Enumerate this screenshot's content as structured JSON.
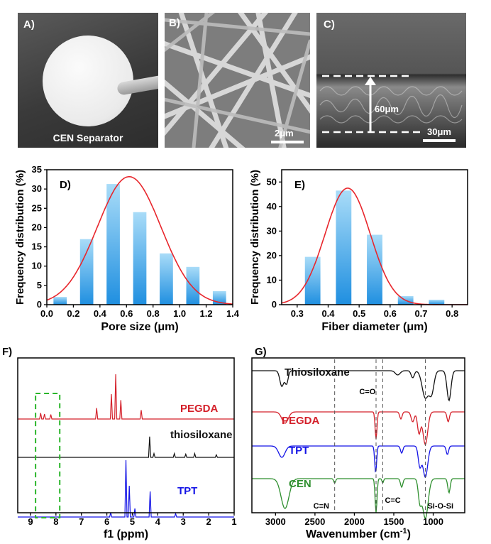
{
  "panels": {
    "a": {
      "label": "A)",
      "caption": "CEN Separator"
    },
    "b": {
      "label": "B)",
      "scale_bar": "2μm"
    },
    "c": {
      "label": "C)",
      "thickness": "60μm",
      "scale_bar": "30μm"
    },
    "d": {
      "label": "D)"
    },
    "e": {
      "label": "E)"
    },
    "f": {
      "label": "F)",
      "xlabel": "f1 (ppm)"
    },
    "g": {
      "label": "G)",
      "xlabel_main": "Wavenumber (cm",
      "xlabel_sup": "-1",
      "xlabel_end": ")"
    }
  },
  "colors": {
    "bar_top": "#a9dcf8",
    "bar_bottom": "#1f8fe0",
    "fit": "#e8262c",
    "red": "#d4202a",
    "black": "#111111",
    "blue": "#1414e6",
    "green": "#2e8f2e",
    "highlight": "#2ab52a"
  },
  "chart_data": [
    {
      "id": "D",
      "type": "bar",
      "xlabel": "Pore size (μm)",
      "ylabel": "Frequency distribution (%)",
      "xlim": [
        0.0,
        1.4
      ],
      "ylim": [
        0,
        35
      ],
      "xticks": [
        "0.0",
        "0.2",
        "0.4",
        "0.6",
        "0.8",
        "1.0",
        "1.2",
        "1.4"
      ],
      "yticks": [
        "0",
        "5",
        "10",
        "15",
        "20",
        "25",
        "30",
        "35"
      ],
      "bar_width": 0.1,
      "x": [
        0.1,
        0.3,
        0.5,
        0.7,
        0.9,
        1.1,
        1.3
      ],
      "values": [
        2,
        17,
        31.3,
        24,
        13.3,
        9.8,
        3.5
      ],
      "fit": {
        "type": "gaussian",
        "peak": 33.2,
        "center": 0.62,
        "sigma": 0.24
      }
    },
    {
      "id": "E",
      "type": "bar",
      "xlabel": "Fiber diameter (μm)",
      "ylabel": "Frequency distribution (%)",
      "xlim": [
        0.25,
        0.85
      ],
      "ylim": [
        0,
        55
      ],
      "xticks": [
        "0.3",
        "0.4",
        "0.5",
        "0.6",
        "0.7",
        "0.8"
      ],
      "xtick_values": [
        0.3,
        0.4,
        0.5,
        0.6,
        0.7,
        0.8
      ],
      "yticks": [
        "0",
        "10",
        "20",
        "30",
        "40",
        "50"
      ],
      "bar_width": 0.05,
      "x": [
        0.35,
        0.45,
        0.55,
        0.65,
        0.75
      ],
      "values": [
        19.5,
        46.5,
        28.5,
        3.5,
        2
      ],
      "fit": {
        "type": "gaussian",
        "peak": 47.5,
        "center": 0.463,
        "sigma": 0.073
      }
    },
    {
      "id": "F",
      "type": "line",
      "xlabel": "f1 (ppm)",
      "xlim": [
        9.5,
        1.0
      ],
      "xticks": [
        "9",
        "8",
        "7",
        "6",
        "5",
        "4",
        "3",
        "2",
        "1"
      ],
      "series": [
        {
          "name": "PEGDA",
          "peaks": [
            [
              8.6,
              0.12
            ],
            [
              8.45,
              0.1
            ],
            [
              8.2,
              0.09
            ],
            [
              6.4,
              0.22
            ],
            [
              5.82,
              0.5
            ],
            [
              5.65,
              0.9
            ],
            [
              5.45,
              0.38
            ],
            [
              4.65,
              0.18
            ]
          ]
        },
        {
          "name": "thiosiloxane",
          "peaks": [
            [
              4.32,
              0.65
            ],
            [
              4.15,
              0.12
            ],
            [
              3.35,
              0.12
            ],
            [
              2.9,
              0.1
            ],
            [
              2.55,
              0.12
            ],
            [
              1.7,
              0.08
            ]
          ]
        },
        {
          "name": "TPT",
          "peaks": [
            [
              5.85,
              0.08
            ],
            [
              5.25,
              1.0
            ],
            [
              5.12,
              0.55
            ],
            [
              4.9,
              0.15
            ],
            [
              4.3,
              0.45
            ],
            [
              3.3,
              0.06
            ]
          ]
        }
      ]
    },
    {
      "id": "G",
      "type": "line",
      "xlabel": "Wavenumber (cm-1)",
      "xlim": [
        3300,
        600
      ],
      "xticks": [
        "3000",
        "2500",
        "2000",
        "1500",
        "1000"
      ],
      "series": [
        {
          "name": "Thiosiloxane"
        },
        {
          "name": "PEGDA"
        },
        {
          "name": "TPT"
        },
        {
          "name": "CEN"
        }
      ],
      "annotations": [
        "C=O",
        "C≡N",
        "C=C",
        "Si-O-Si"
      ]
    }
  ]
}
